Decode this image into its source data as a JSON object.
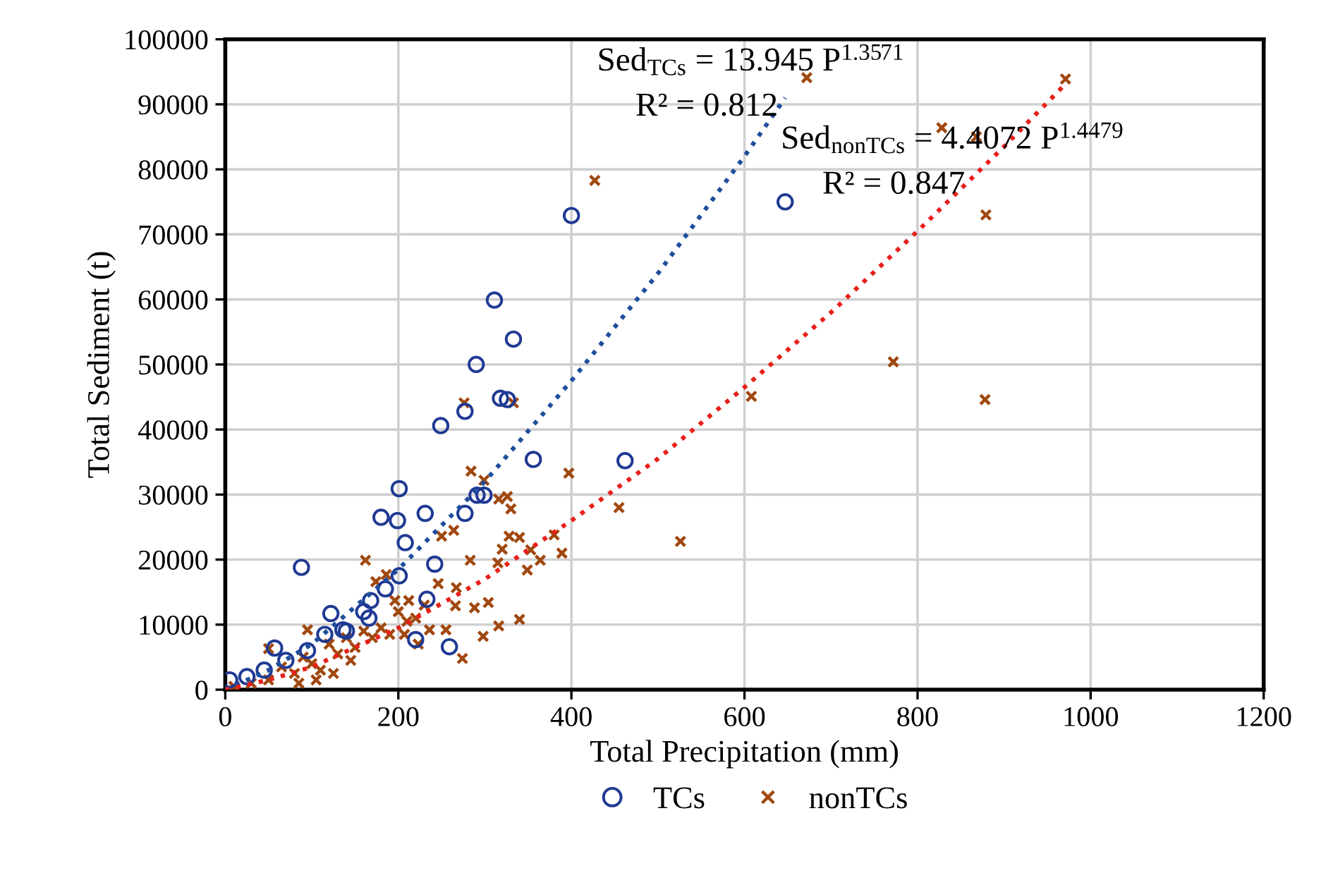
{
  "chart_data": {
    "type": "scatter",
    "xlabel": "Total Precipitation (mm)",
    "ylabel": "Total Sediment (t)",
    "xlim": [
      0,
      1200
    ],
    "xticks": [
      0,
      200,
      400,
      600,
      800,
      1000,
      1200
    ],
    "ylim": [
      0,
      100000
    ],
    "yticks": [
      0,
      10000,
      20000,
      30000,
      40000,
      50000,
      60000,
      70000,
      80000,
      90000,
      100000
    ],
    "grid": true,
    "legend": "bottom",
    "annotations": [
      "Sed$_{TCs}$ = 13.945 P$^{1.3571}$",
      "R² = 0.812",
      "Sed$_{nonTCs}$ = 4.4072 P$^{1.4479}$",
      "R² = 0.847"
    ],
    "series": [
      {
        "name": "TCs",
        "color": "#1f3a93",
        "marker": "circle",
        "x": [
          400,
          311,
          333,
          290,
          318,
          326,
          277,
          249,
          647,
          356,
          462,
          201,
          277,
          231,
          291,
          299,
          180,
          199,
          208,
          242,
          88,
          201,
          122,
          168,
          233,
          220,
          259,
          57,
          136,
          166,
          5,
          25,
          45,
          70,
          95,
          115,
          140,
          160,
          185
        ],
        "values": [
          72900,
          59900,
          53900,
          50000,
          44800,
          44600,
          42800,
          40600,
          75000,
          35400,
          35200,
          30900,
          27100,
          27100,
          29900,
          29900,
          26500,
          26000,
          22600,
          19300,
          18800,
          17500,
          11700,
          13700,
          13900,
          7700,
          6600,
          6400,
          9200,
          11000,
          1500,
          2000,
          3000,
          4500,
          6000,
          8500,
          9000,
          12000,
          15500
        ]
      },
      {
        "name": "nonTCs",
        "color": "#a0480f",
        "marker": "cross",
        "x": [
          427,
          276,
          333,
          608,
          284,
          397,
          299,
          316,
          326,
          330,
          455,
          526,
          264,
          250,
          328,
          340,
          380,
          320,
          353,
          389,
          162,
          283,
          315,
          364,
          349,
          186,
          174,
          246,
          267,
          196,
          212,
          266,
          288,
          304,
          340,
          316,
          298,
          274,
          95,
          50,
          236,
          255,
          207,
          223,
          672,
          971,
          828,
          868,
          879,
          772,
          878,
          10,
          30,
          50,
          65,
          80,
          90,
          100,
          110,
          120,
          130,
          140,
          150,
          160,
          170,
          180,
          190,
          200,
          210,
          220,
          230,
          105,
          125,
          145,
          85
        ],
        "values": [
          78300,
          44100,
          44100,
          45100,
          33600,
          33300,
          32200,
          29300,
          29700,
          27800,
          28000,
          22800,
          24500,
          23600,
          23600,
          23400,
          23800,
          21600,
          21500,
          21000,
          19900,
          19900,
          19500,
          19900,
          18400,
          17700,
          16600,
          16300,
          15700,
          13700,
          13700,
          12900,
          12600,
          13400,
          10800,
          9800,
          8200,
          4800,
          9200,
          6300,
          9200,
          9200,
          8500,
          7000,
          94100,
          93900,
          86400,
          85000,
          73000,
          50400,
          44600,
          500,
          1000,
          1500,
          3500,
          2500,
          5000,
          4000,
          3000,
          7000,
          5500,
          8000,
          6500,
          9000,
          8000,
          9500,
          8500,
          12000,
          10500,
          11000,
          13000,
          1500,
          2500,
          4500,
          1000
        ]
      },
      {
        "type": "line",
        "color": "#1f4e9c",
        "line_style": "dotted",
        "marker": "none",
        "x": [
          0,
          50,
          100,
          200,
          300,
          400,
          500,
          600,
          647
        ],
        "values": [
          0,
          3000,
          7000,
          18500,
          32000,
          47500,
          64000,
          82000,
          91000
        ]
      },
      {
        "type": "line",
        "color": "#e8201a",
        "line_style": "dotted",
        "marker": "none",
        "x": [
          0,
          50,
          100,
          200,
          300,
          400,
          500,
          600,
          700,
          800,
          900,
          970
        ],
        "values": [
          0,
          1500,
          3500,
          9500,
          17000,
          26000,
          35500,
          46500,
          58000,
          70500,
          83500,
          93000
        ]
      }
    ]
  }
}
